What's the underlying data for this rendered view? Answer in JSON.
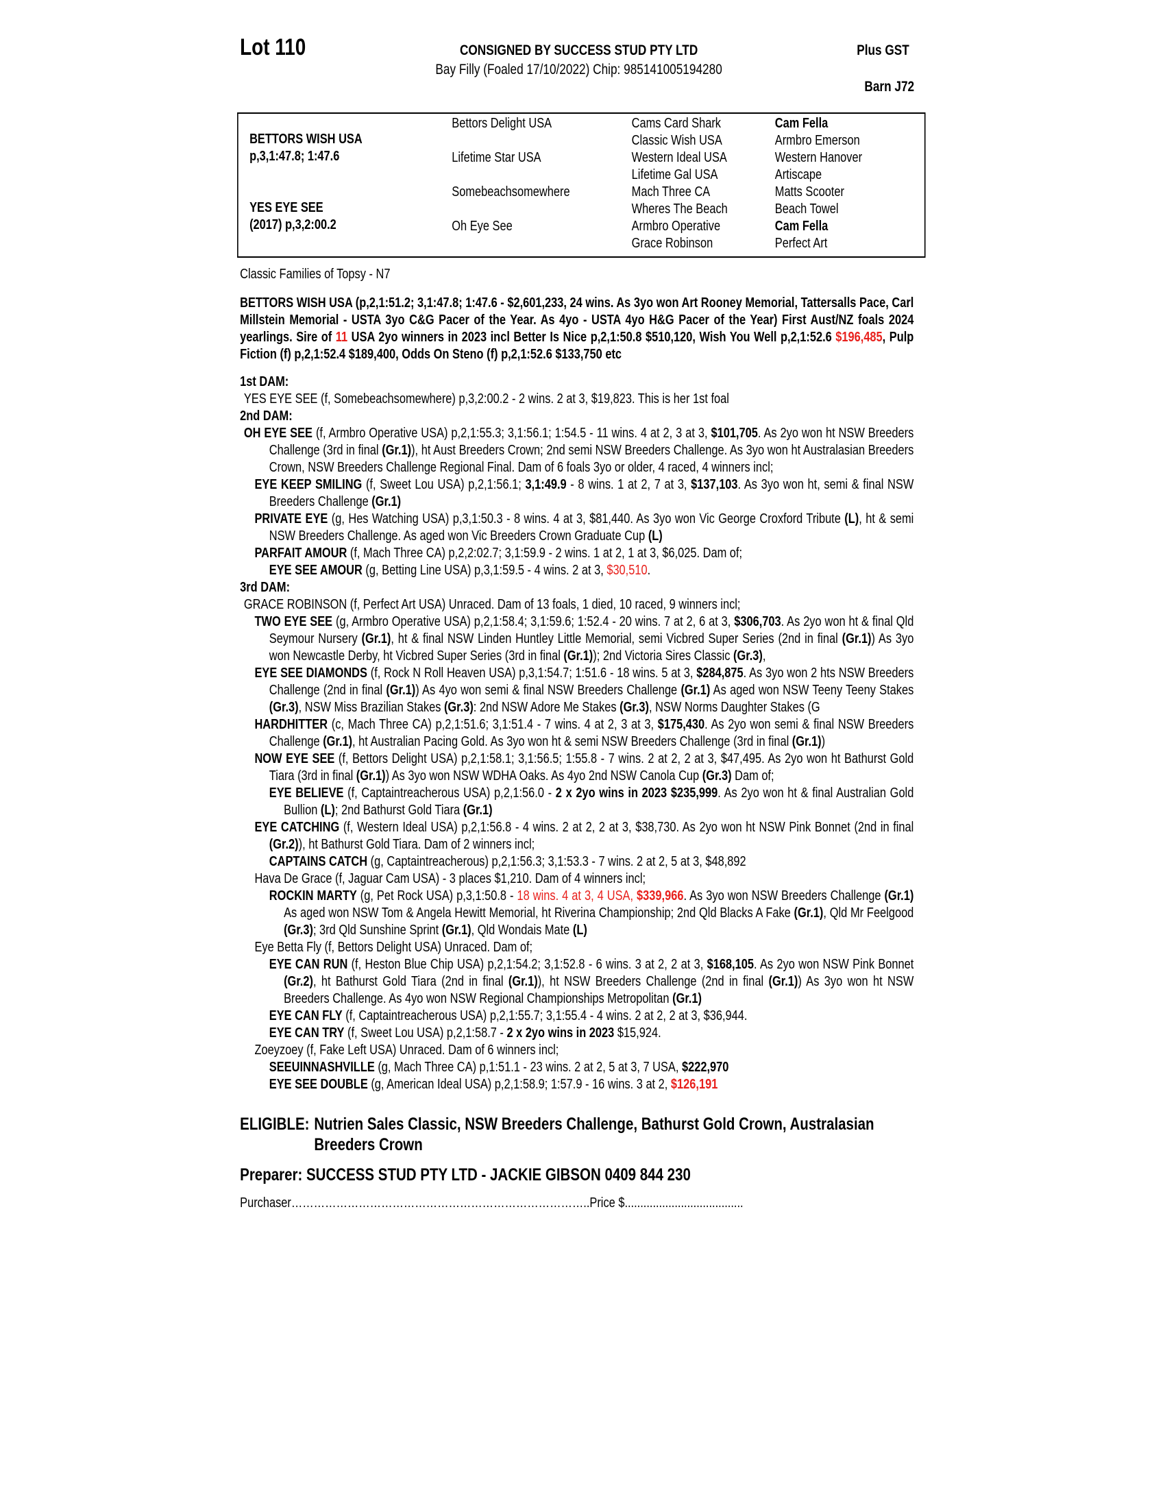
{
  "header": {
    "lot": "Lot 110",
    "consigned": "CONSIGNED BY SUCCESS STUD PTY LTD",
    "description": "Bay Filly (Foaled 17/10/2022) Chip: 985141005194280",
    "gst": "Plus GST",
    "barn": "Barn J72"
  },
  "pedigree": {
    "sire_name": "BETTORS WISH USA",
    "sire_record": "p,3,1:47.8; 1:47.6",
    "dam_name": "YES EYE SEE",
    "dam_record": "(2017) p,3,2:00.2",
    "gen2": [
      "Bettors Delight USA",
      "Lifetime Star USA",
      "Somebeachsomewhere",
      "Oh Eye See"
    ],
    "gen3": [
      "Cams Card Shark",
      "Classic Wish USA",
      "Western Ideal USA",
      "Lifetime Gal USA",
      "Mach Three CA",
      "Wheres The Beach",
      "Armbro Operative",
      "Grace Robinson"
    ],
    "gen4": [
      {
        "t": "Cam Fella",
        "b": true
      },
      {
        "t": "Armbro Emerson"
      },
      {
        "t": "Western Hanover"
      },
      {
        "t": "Artiscape"
      },
      {
        "t": "Matts Scooter"
      },
      {
        "t": "Beach Towel"
      },
      {
        "t": "Cam Fella",
        "b": true
      },
      {
        "t": "Perfect Art"
      }
    ]
  },
  "family": "Classic Families of Topsy - N7",
  "sire_paragraph": [
    [
      "BETTORS WISH USA (p,2,1:51.2; 3,1:47.8; 1:47.6 - $2,601,233, 24 wins. As 3yo won Art Rooney Memorial, Tattersalls Pace, Carl Millstein Memorial - USTA 3yo C&G Pacer of the Year. As 4yo - USTA 4yo H&G Pacer of the Year) First Aust/NZ foals 2024 yearlings. Sire of ",
      ""
    ],
    [
      "11",
      "r"
    ],
    [
      " USA 2yo winners in 2023 incl Better Is Nice p,2,1:50.8 $510,120, Wish You Well p,2,1:52.6 ",
      ""
    ],
    [
      "$196,485",
      "r"
    ],
    [
      ", Pulp Fiction (f) p,2,1:52.4 $189,400, Odds On Steno (f) p,2,1:52.6 $133,750 etc",
      ""
    ]
  ],
  "dams": [
    {
      "k": "h",
      "s": [
        [
          "1st DAM:",
          ""
        ]
      ]
    },
    {
      "k": "p0",
      "s": [
        [
          "YES EYE SEE (f, Somebeachsomewhere) p,3,2:00.2 - 2 wins. 2 at 3, $19,823. This is her 1st foal",
          ""
        ]
      ]
    },
    {
      "k": "h",
      "s": [
        [
          "2nd DAM:",
          ""
        ]
      ]
    },
    {
      "k": "p0",
      "s": [
        [
          "OH EYE SEE",
          "b"
        ],
        [
          " (f, Armbro Operative USA) p,2,1:55.3; 3,1:56.1; 1:54.5 - 11 wins. 4 at 2, 3 at 3, ",
          ""
        ],
        [
          "$101,705",
          "b"
        ],
        [
          ". As 2yo won ht NSW Breeders Challenge (3rd in final ",
          ""
        ],
        [
          "(Gr.1)",
          "b"
        ],
        [
          "), ht Aust Breeders Crown; 2nd semi NSW Breeders Challenge. As 3yo won ht Australasian Breeders Crown, NSW Breeders Challenge Regional Final. Dam of 6 foals 3yo or older, 4 raced, 4 winners incl;",
          ""
        ]
      ]
    },
    {
      "k": "p1",
      "s": [
        [
          "EYE KEEP SMILING",
          "b"
        ],
        [
          " (f, Sweet Lou USA) p,2,1:56.1; ",
          ""
        ],
        [
          "3,1:49.9",
          "b"
        ],
        [
          " - 8 wins. 1 at 2, 7 at 3, ",
          ""
        ],
        [
          "$137,103",
          "b"
        ],
        [
          ". As 3yo won ht, semi & final NSW Breeders Challenge ",
          ""
        ],
        [
          "(Gr.1)",
          "b"
        ]
      ]
    },
    {
      "k": "p1",
      "s": [
        [
          "PRIVATE EYE",
          "b"
        ],
        [
          " (g, Hes Watching USA) p,3,1:50.3 - 8 wins. 4 at 3, $81,440. As 3yo won Vic George Croxford Tribute ",
          ""
        ],
        [
          "(L)",
          "b"
        ],
        [
          ", ht & semi NSW Breeders Challenge. As aged won Vic Breeders Crown Graduate Cup ",
          ""
        ],
        [
          "(L)",
          "b"
        ]
      ]
    },
    {
      "k": "p1",
      "s": [
        [
          "PARFAIT AMOUR",
          "b"
        ],
        [
          " (f, Mach Three CA) p,2,2:02.7; 3,1:59.9 - 2 wins. 1 at 2, 1 at 3, $6,025. Dam of;",
          ""
        ]
      ]
    },
    {
      "k": "p2",
      "s": [
        [
          "EYE SEE AMOUR",
          "b"
        ],
        [
          " (g, Betting Line USA) p,3,1:59.5 - 4 wins. 2 at 3, ",
          ""
        ],
        [
          "$30,510",
          "r"
        ],
        [
          ".",
          ""
        ]
      ]
    },
    {
      "k": "h",
      "s": [
        [
          "3rd DAM:",
          ""
        ]
      ]
    },
    {
      "k": "p0",
      "s": [
        [
          "GRACE ROBINSON (f, Perfect Art USA) Unraced. Dam of 13 foals, 1 died, 10 raced, 9 winners incl;",
          ""
        ]
      ]
    },
    {
      "k": "p1",
      "s": [
        [
          "TWO EYE SEE",
          "b"
        ],
        [
          " (g, Armbro Operative USA) p,2,1:58.4; 3,1:59.6; 1:52.4 - 20 wins. 7 at 2, 6 at 3, ",
          ""
        ],
        [
          "$306,703",
          "b"
        ],
        [
          ". As 2yo won ht & final Qld Seymour Nursery ",
          ""
        ],
        [
          "(Gr.1)",
          "b"
        ],
        [
          ", ht & final NSW Linden Huntley Little Memorial, semi Vicbred Super Series (2nd in final ",
          ""
        ],
        [
          "(Gr.1)",
          "b"
        ],
        [
          ") As 3yo won Newcastle Derby, ht Vicbred Super Series (3rd in final ",
          ""
        ],
        [
          "(Gr.1)",
          "b"
        ],
        [
          "); 2nd Victoria Sires Classic ",
          ""
        ],
        [
          "(Gr.3)",
          "b"
        ],
        [
          ",",
          ""
        ]
      ]
    },
    {
      "k": "p1",
      "s": [
        [
          "EYE SEE DIAMONDS",
          "b"
        ],
        [
          " (f, Rock N Roll Heaven USA) p,3,1:54.7; 1:51.6 - 18 wins. 5 at 3, ",
          ""
        ],
        [
          "$284,875",
          "b"
        ],
        [
          ". As 3yo won 2 hts NSW Breeders Challenge (2nd in final ",
          ""
        ],
        [
          "(Gr.1)",
          "b"
        ],
        [
          ") As 4yo won semi & final NSW Breeders Challenge ",
          ""
        ],
        [
          "(Gr.1)",
          "b"
        ],
        [
          " As aged won NSW Teeny Teeny Stakes ",
          ""
        ],
        [
          "(Gr.3)",
          "b"
        ],
        [
          ", NSW Miss Brazilian Stakes ",
          ""
        ],
        [
          "(Gr.3)",
          "b"
        ],
        [
          ": 2nd NSW Adore Me Stakes ",
          ""
        ],
        [
          "(Gr.3)",
          "b"
        ],
        [
          ", NSW Norms Daughter Stakes (G",
          ""
        ]
      ]
    },
    {
      "k": "p1",
      "s": [
        [
          "HARDHITTER",
          "b"
        ],
        [
          " (c, Mach Three CA) p,2,1:51.6; 3,1:51.4 - 7 wins. 4 at 2, 3 at 3, ",
          ""
        ],
        [
          "$175,430",
          "b"
        ],
        [
          ". As 2yo won semi & final NSW Breeders Challenge ",
          ""
        ],
        [
          "(Gr.1)",
          "b"
        ],
        [
          ", ht Australian Pacing Gold. As 3yo won ht & semi NSW Breeders Challenge (3rd in final ",
          ""
        ],
        [
          "(Gr.1)",
          "b"
        ],
        [
          ")",
          ""
        ]
      ]
    },
    {
      "k": "p1",
      "s": [
        [
          "NOW EYE SEE",
          "b"
        ],
        [
          " (f, Bettors Delight USA) p,2,1:58.1; 3,1:56.5; 1:55.8 - 7 wins. 2 at 2, 2 at 3, $47,495. As 2yo won ht Bathurst Gold Tiara (3rd in final ",
          ""
        ],
        [
          "(Gr.1)",
          "b"
        ],
        [
          ") As 3yo won NSW WDHA Oaks. As 4yo 2nd NSW Canola Cup ",
          ""
        ],
        [
          "(Gr.3)",
          "b"
        ],
        [
          " Dam of;",
          ""
        ]
      ]
    },
    {
      "k": "p2",
      "s": [
        [
          "EYE BELIEVE",
          "b"
        ],
        [
          " (f, Captaintreacherous USA) p,2,1:56.0 - ",
          ""
        ],
        [
          "2 x 2yo wins in 2023 $235,999",
          "b"
        ],
        [
          ". As 2yo won ht & final Australian Gold Bullion ",
          ""
        ],
        [
          "(L)",
          "b"
        ],
        [
          "; 2nd Bathurst Gold Tiara ",
          ""
        ],
        [
          "(Gr.1)",
          "b"
        ]
      ]
    },
    {
      "k": "p1",
      "s": [
        [
          "EYE CATCHING",
          "b"
        ],
        [
          " (f, Western Ideal USA) p,2,1:56.8 - 4 wins. 2 at 2, 2 at 3, $38,730. As 2yo won ht NSW Pink Bonnet (2nd in final ",
          ""
        ],
        [
          "(Gr.2)",
          "b"
        ],
        [
          "), ht Bathurst Gold Tiara. Dam of 2 winners incl;",
          ""
        ]
      ]
    },
    {
      "k": "p2",
      "s": [
        [
          "CAPTAINS CATCH",
          "b"
        ],
        [
          " (g, Captaintreacherous) p,2,1:56.3; 3,1:53.3 - 7 wins. 2 at 2, 5 at 3, $48,892",
          ""
        ]
      ]
    },
    {
      "k": "p1",
      "s": [
        [
          "Hava De Grace (f, Jaguar Cam USA) - 3 places $1,210. Dam of 4 winners incl;",
          ""
        ]
      ]
    },
    {
      "k": "p2",
      "s": [
        [
          "ROCKIN MARTY",
          "b"
        ],
        [
          " (g, Pet Rock USA) p,3,1:50.8 - ",
          ""
        ],
        [
          "18 wins. 4 at 3, 4 USA, ",
          "r"
        ],
        [
          "$339,966",
          "br"
        ],
        [
          ". As 3yo won NSW Breeders Challenge ",
          ""
        ],
        [
          "(Gr.1)",
          "b"
        ],
        [
          " As aged won NSW Tom & Angela Hewitt Memorial, ht Riverina Championship; 2nd Qld Blacks A Fake ",
          ""
        ],
        [
          "(Gr.1)",
          "b"
        ],
        [
          ", Qld Mr Feelgood ",
          ""
        ],
        [
          "(Gr.3)",
          "b"
        ],
        [
          "; 3rd Qld Sunshine Sprint ",
          ""
        ],
        [
          "(Gr.1)",
          "b"
        ],
        [
          ", Qld Wondais Mate ",
          ""
        ],
        [
          "(L)",
          "b"
        ]
      ]
    },
    {
      "k": "p1",
      "s": [
        [
          "Eye Betta Fly (f, Bettors Delight USA) Unraced. Dam of;",
          ""
        ]
      ]
    },
    {
      "k": "p2",
      "s": [
        [
          "EYE CAN RUN",
          "b"
        ],
        [
          " (f, Heston Blue Chip USA) p,2,1:54.2; 3,1:52.8 - 6 wins. 3 at 2, 2 at 3, ",
          ""
        ],
        [
          "$168,105",
          "b"
        ],
        [
          ". As 2yo won NSW Pink Bonnet ",
          ""
        ],
        [
          "(Gr.2)",
          "b"
        ],
        [
          ", ht Bathurst Gold Tiara (2nd in final ",
          ""
        ],
        [
          "(Gr.1)",
          "b"
        ],
        [
          "), ht NSW Breeders Challenge (2nd in final ",
          ""
        ],
        [
          "(Gr.1)",
          "b"
        ],
        [
          ") As 3yo won ht NSW Breeders Challenge. As 4yo won NSW Regional Championships Metropolitan ",
          ""
        ],
        [
          "(Gr.1)",
          "b"
        ]
      ]
    },
    {
      "k": "p2",
      "s": [
        [
          "EYE CAN FLY",
          "b"
        ],
        [
          " (f, Captaintreacherous USA) p,2,1:55.7; 3,1:55.4 - 4 wins. 2 at 2, 2 at 3, $36,944.",
          ""
        ]
      ]
    },
    {
      "k": "p2",
      "s": [
        [
          "EYE CAN TRY",
          "b"
        ],
        [
          " (f, Sweet Lou USA) p,2,1:58.7 - ",
          ""
        ],
        [
          "2 x 2yo wins in 2023",
          "b"
        ],
        [
          " $15,924.",
          ""
        ]
      ]
    },
    {
      "k": "p1",
      "s": [
        [
          "Zoeyzoey (f, Fake Left USA) Unraced. Dam of 6 winners incl;",
          ""
        ]
      ]
    },
    {
      "k": "p2",
      "s": [
        [
          "SEEUINNASHVILLE",
          "b"
        ],
        [
          " (g, Mach Three CA) p,1:51.1 - 23 wins. 2 at 2, 5 at 3, 7 USA, ",
          ""
        ],
        [
          "$222,970",
          "b"
        ]
      ]
    },
    {
      "k": "p2",
      "s": [
        [
          "EYE SEE DOUBLE",
          "b"
        ],
        [
          " (g, American Ideal USA) p,2,1:58.9; 1:57.9 - 16 wins. 3 at 2, ",
          ""
        ],
        [
          "$126,191",
          "br"
        ]
      ]
    }
  ],
  "eligible": {
    "label": "ELIGIBLE:",
    "value": "Nutrien Sales Classic, NSW Breeders Challenge, Bathurst Gold Crown, Australasian Breeders Crown"
  },
  "preparer": "Preparer: SUCCESS STUD PTY LTD - JACKIE GIBSON 0409 844 230",
  "purchaser": "Purchaser……………………………………………………………………..Price $......................................",
  "colors": {
    "highlight": "#e8201c",
    "text": "#000000"
  }
}
